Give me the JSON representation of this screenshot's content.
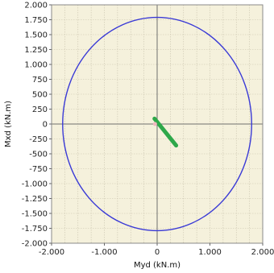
{
  "chart_data": {
    "type": "scatter",
    "xlabel": "Myd  (kN.m)",
    "ylabel": "Mxd  (kN.m)",
    "xlim": [
      -2000,
      2000
    ],
    "ylim": [
      -2000,
      2000
    ],
    "xticks": [
      -2000,
      -1000,
      0,
      1000,
      2000
    ],
    "xtick_labels": [
      "-2.000",
      "-1.000",
      "0",
      "1.000",
      "2.000"
    ],
    "yticks": [
      2000,
      1750,
      1500,
      1250,
      1000,
      750,
      500,
      250,
      0,
      -250,
      -500,
      -750,
      -1000,
      -1250,
      -1500,
      -1750,
      -2000
    ],
    "ytick_labels": [
      "2.000",
      "1.750",
      "1.500",
      "1.250",
      "1.000",
      "750",
      "500",
      "250",
      "0",
      "-250",
      "-500",
      "-750",
      "-1.000",
      "-1.250",
      "-1.500",
      "-1.750",
      "-2.000"
    ],
    "grid": true,
    "background": "#f5f1dc",
    "series": [
      {
        "kind": "circle",
        "color": "#3a3ad6",
        "center": [
          0,
          0
        ],
        "radius": 1790
      },
      {
        "kind": "segment",
        "color": "#2ea84a",
        "x": [
          -50,
          360
        ],
        "y": [
          90,
          -360
        ]
      },
      {
        "kind": "point",
        "color": "#f2b8c0",
        "x": [
          -40
        ],
        "y": [
          0
        ]
      }
    ]
  }
}
